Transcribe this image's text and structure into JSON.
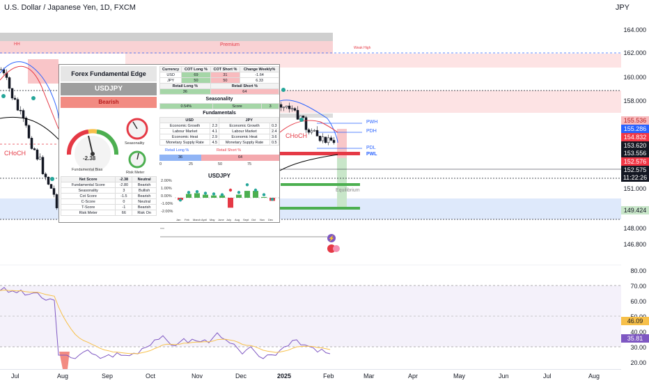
{
  "header": {
    "title": "U.S. Dollar / Japanese Yen, 1D, FXCM",
    "currency": "JPY"
  },
  "price_axis": {
    "ticks": [
      "164.000",
      "162.000",
      "160.000",
      "158.000",
      "151.000",
      "148.000",
      "146.800"
    ],
    "tags": [
      {
        "value": "155.536",
        "color": "#f8bbbe",
        "text_color": "#b71c1c"
      },
      {
        "value": "155.286",
        "color": "#2962ff",
        "text_color": "#ffffff"
      },
      {
        "value": "154.832",
        "color": "#f23645",
        "text_color": "#ffffff"
      },
      {
        "value": "153.620",
        "color": "#131722",
        "text_color": "#ffffff"
      },
      {
        "value": "153.556",
        "color": "#131722",
        "text_color": "#ffffff"
      },
      {
        "value": "152.576",
        "color": "#f23645",
        "text_color": "#ffffff"
      },
      {
        "value": "152.575",
        "color": "#131722",
        "text_color": "#ffffff"
      },
      {
        "value": "11:22:26",
        "color": "#131722",
        "text_color": "#ffffff"
      },
      {
        "value": "149.424",
        "color": "#c8e6c9",
        "text_color": "#131722"
      }
    ]
  },
  "rsi_axis": {
    "ticks": [
      "80.00",
      "70.00",
      "60.00",
      "50.00",
      "40.00",
      "30.00",
      "20.00"
    ],
    "tags": [
      {
        "value": "46.09",
        "color": "#f7c04a",
        "text_color": "#131722"
      },
      {
        "value": "35.81",
        "color": "#7e57c2",
        "text_color": "#ffffff"
      }
    ]
  },
  "time_axis": {
    "labels": [
      "Jul",
      "Aug",
      "Sep",
      "Oct",
      "Nov",
      "Dec",
      "2025",
      "Feb",
      "Mar",
      "Apr",
      "May",
      "Jun",
      "Jul",
      "Aug"
    ]
  },
  "chart_annotations": {
    "premium": "Premium",
    "hh": "HH",
    "weak_high": "Weak High",
    "choch_left": "CHoCH",
    "choch_right": "CHoCH",
    "pwh": "PWH",
    "pdh": "PDH",
    "pdl": "PDL",
    "pwl": "PWL",
    "equilibrium": "Equilibrium"
  },
  "panel": {
    "title": "Forex Fundamental Edge",
    "symbol": "USDJPY",
    "bias": "Bearish",
    "gauge_value": "-2.38",
    "gauge_label": "Fundamental Bias",
    "seasonality_label": "Seasonality",
    "risk_meter_label": "Risk Meter",
    "cot": {
      "headers": [
        "Currency",
        "COT Long %",
        "COT Short %",
        "Change Weekly%"
      ],
      "rows": [
        [
          "USD",
          "69",
          "31",
          "-1.64"
        ],
        [
          "JPY",
          "50",
          "50",
          "6.33"
        ]
      ]
    },
    "retail": {
      "long_header": "Retail Long %",
      "short_header": "Retail Short %",
      "long": "36",
      "short": "64"
    },
    "seasonality": {
      "title": "Seasonality",
      "value": "0.54%",
      "score_label": "Score",
      "score": "3"
    },
    "fundamentals": {
      "title": "Fundamentals",
      "usd_header": "USD",
      "jpy_header": "JPY",
      "rows": [
        [
          "Economic Growth",
          "2.3",
          "Economic Growth",
          "0.3"
        ],
        [
          "Labour Market",
          "4.1",
          "Labour Market",
          "2.4"
        ],
        [
          "Economic Heat",
          "2.9",
          "Economic Heat",
          "3.6"
        ],
        [
          "Monetary Supply Rate",
          "4.5",
          "Monetary Supply Rate",
          "0.5"
        ]
      ]
    },
    "retail_bar": {
      "legend_long": "Retail Long %",
      "legend_short": "Retail Short %",
      "long": "36",
      "short": "64",
      "ticks": [
        "0",
        "25",
        "50",
        "75"
      ]
    },
    "scores": {
      "headers": [
        "Net Score",
        "-2.38",
        "Neutral"
      ],
      "rows": [
        [
          "Fundamental Score",
          "-2.80",
          "Bearish"
        ],
        [
          "Seasonality",
          "3",
          "Bullish"
        ],
        [
          "Cot Score",
          "-1.5",
          "Bearish"
        ],
        [
          "C-Score",
          "0",
          "Neutral"
        ],
        [
          "T-Score",
          "-1",
          "Bearish"
        ],
        [
          "Risk Meter",
          "66",
          "Risk On"
        ]
      ]
    },
    "seasonal_chart": {
      "title": "USDJPY",
      "y_ticks": [
        "2.00%",
        "1.00%",
        "0.00%",
        "-1.00%",
        "-2.00%"
      ],
      "months": [
        "Jan",
        "Feb",
        "March",
        "April",
        "May",
        "June",
        "July",
        "Aug",
        "Sept",
        "Oct",
        "Nov",
        "Dec"
      ],
      "values": [
        -0.3,
        0.5,
        0.6,
        0.4,
        0.3,
        0.3,
        -1.3,
        0.4,
        0.9,
        0.9,
        0.1,
        -0.4
      ],
      "dots": [
        -0.3,
        0.7,
        0.8,
        0.6,
        0.5,
        0.4,
        1.0,
        0.7,
        1.7,
        1.0,
        0.4,
        -0.2
      ]
    }
  }
}
